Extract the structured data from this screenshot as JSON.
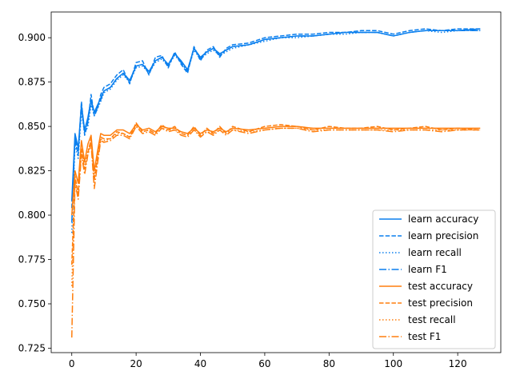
{
  "chart_data": {
    "type": "line",
    "title": "",
    "xlabel": "",
    "ylabel": "",
    "xlim": [
      -6.4,
      133.4
    ],
    "ylim": [
      0.7225,
      0.9145
    ],
    "x_ticks": [
      0,
      20,
      40,
      60,
      80,
      100,
      120
    ],
    "y_ticks": [
      0.725,
      0.75,
      0.775,
      0.8,
      0.825,
      0.85,
      0.875,
      0.9
    ],
    "y_tick_labels": [
      "0.725",
      "0.750",
      "0.775",
      "0.800",
      "0.825",
      "0.850",
      "0.875",
      "0.900"
    ],
    "grid": false,
    "legend_position": "lower right",
    "x": [
      0,
      1,
      2,
      3,
      4,
      5,
      6,
      7,
      8,
      9,
      10,
      12,
      14,
      16,
      18,
      20,
      22,
      24,
      26,
      28,
      30,
      32,
      34,
      36,
      38,
      40,
      42,
      44,
      46,
      48,
      50,
      55,
      60,
      65,
      70,
      75,
      80,
      85,
      90,
      95,
      100,
      105,
      110,
      115,
      120,
      127
    ],
    "series": [
      {
        "name": "learn accuracy",
        "color": "#0a7fee",
        "dash": "solid",
        "values": [
          0.808,
          0.846,
          0.838,
          0.862,
          0.848,
          0.855,
          0.865,
          0.858,
          0.862,
          0.866,
          0.87,
          0.872,
          0.877,
          0.88,
          0.876,
          0.884,
          0.885,
          0.881,
          0.887,
          0.889,
          0.885,
          0.891,
          0.887,
          0.882,
          0.894,
          0.889,
          0.892,
          0.894,
          0.891,
          0.893,
          0.895,
          0.896,
          0.899,
          0.9,
          0.901,
          0.901,
          0.902,
          0.903,
          0.903,
          0.903,
          0.901,
          0.903,
          0.904,
          0.904,
          0.904,
          0.905
        ]
      },
      {
        "name": "learn precision",
        "color": "#0a7fee",
        "dash": "dashed",
        "values": [
          0.804,
          0.842,
          0.834,
          0.864,
          0.845,
          0.852,
          0.868,
          0.856,
          0.86,
          0.868,
          0.872,
          0.874,
          0.879,
          0.882,
          0.874,
          0.886,
          0.887,
          0.879,
          0.889,
          0.89,
          0.883,
          0.892,
          0.885,
          0.88,
          0.895,
          0.887,
          0.893,
          0.895,
          0.889,
          0.894,
          0.896,
          0.897,
          0.9,
          0.901,
          0.902,
          0.902,
          0.903,
          0.903,
          0.904,
          0.904,
          0.902,
          0.904,
          0.905,
          0.904,
          0.905,
          0.905
        ]
      },
      {
        "name": "learn recall",
        "color": "#0a7fee",
        "dash": "dotted",
        "values": [
          0.79,
          0.84,
          0.832,
          0.858,
          0.846,
          0.85,
          0.862,
          0.856,
          0.86,
          0.864,
          0.869,
          0.871,
          0.876,
          0.879,
          0.875,
          0.883,
          0.884,
          0.88,
          0.886,
          0.888,
          0.884,
          0.89,
          0.886,
          0.881,
          0.893,
          0.888,
          0.891,
          0.893,
          0.89,
          0.892,
          0.894,
          0.896,
          0.898,
          0.9,
          0.9,
          0.901,
          0.902,
          0.902,
          0.903,
          0.903,
          0.901,
          0.903,
          0.904,
          0.903,
          0.904,
          0.904
        ]
      },
      {
        "name": "learn F1",
        "color": "#0a7fee",
        "dash": "dashdot",
        "values": [
          0.796,
          0.844,
          0.836,
          0.86,
          0.847,
          0.853,
          0.864,
          0.857,
          0.861,
          0.865,
          0.87,
          0.872,
          0.877,
          0.88,
          0.875,
          0.884,
          0.885,
          0.88,
          0.887,
          0.889,
          0.884,
          0.891,
          0.886,
          0.881,
          0.894,
          0.888,
          0.892,
          0.894,
          0.89,
          0.893,
          0.895,
          0.896,
          0.899,
          0.9,
          0.901,
          0.901,
          0.902,
          0.903,
          0.903,
          0.903,
          0.901,
          0.903,
          0.904,
          0.904,
          0.904,
          0.904
        ]
      },
      {
        "name": "test accuracy",
        "color": "#ff7f0e",
        "dash": "solid",
        "values": [
          0.8,
          0.825,
          0.818,
          0.842,
          0.83,
          0.84,
          0.845,
          0.825,
          0.836,
          0.846,
          0.845,
          0.845,
          0.848,
          0.848,
          0.846,
          0.851,
          0.848,
          0.849,
          0.847,
          0.85,
          0.849,
          0.849,
          0.847,
          0.846,
          0.849,
          0.846,
          0.848,
          0.847,
          0.849,
          0.847,
          0.849,
          0.848,
          0.849,
          0.85,
          0.85,
          0.849,
          0.849,
          0.849,
          0.849,
          0.849,
          0.849,
          0.849,
          0.849,
          0.849,
          0.849,
          0.849
        ]
      },
      {
        "name": "test precision",
        "color": "#ff7f0e",
        "dash": "dashed",
        "values": [
          0.772,
          0.822,
          0.812,
          0.838,
          0.826,
          0.835,
          0.843,
          0.82,
          0.832,
          0.844,
          0.843,
          0.843,
          0.847,
          0.846,
          0.844,
          0.852,
          0.847,
          0.848,
          0.846,
          0.851,
          0.848,
          0.85,
          0.846,
          0.845,
          0.85,
          0.845,
          0.849,
          0.846,
          0.85,
          0.846,
          0.85,
          0.847,
          0.85,
          0.851,
          0.85,
          0.848,
          0.85,
          0.849,
          0.849,
          0.85,
          0.848,
          0.849,
          0.85,
          0.848,
          0.849,
          0.848
        ]
      },
      {
        "name": "test recall",
        "color": "#ff7f0e",
        "dash": "dotted",
        "values": [
          0.76,
          0.82,
          0.812,
          0.836,
          0.826,
          0.836,
          0.842,
          0.822,
          0.832,
          0.843,
          0.842,
          0.843,
          0.846,
          0.846,
          0.844,
          0.85,
          0.847,
          0.848,
          0.846,
          0.849,
          0.848,
          0.848,
          0.846,
          0.845,
          0.848,
          0.845,
          0.847,
          0.846,
          0.848,
          0.846,
          0.848,
          0.847,
          0.848,
          0.849,
          0.849,
          0.848,
          0.848,
          0.848,
          0.848,
          0.848,
          0.848,
          0.848,
          0.848,
          0.848,
          0.848,
          0.848
        ]
      },
      {
        "name": "test F1",
        "color": "#ff7f0e",
        "dash": "dashdot",
        "values": [
          0.731,
          0.818,
          0.809,
          0.834,
          0.823,
          0.834,
          0.84,
          0.815,
          0.829,
          0.842,
          0.841,
          0.842,
          0.845,
          0.845,
          0.843,
          0.85,
          0.846,
          0.847,
          0.845,
          0.849,
          0.847,
          0.848,
          0.845,
          0.844,
          0.848,
          0.844,
          0.847,
          0.845,
          0.848,
          0.845,
          0.848,
          0.846,
          0.848,
          0.849,
          0.849,
          0.847,
          0.848,
          0.848,
          0.848,
          0.848,
          0.847,
          0.848,
          0.848,
          0.847,
          0.848,
          0.848
        ]
      }
    ]
  }
}
